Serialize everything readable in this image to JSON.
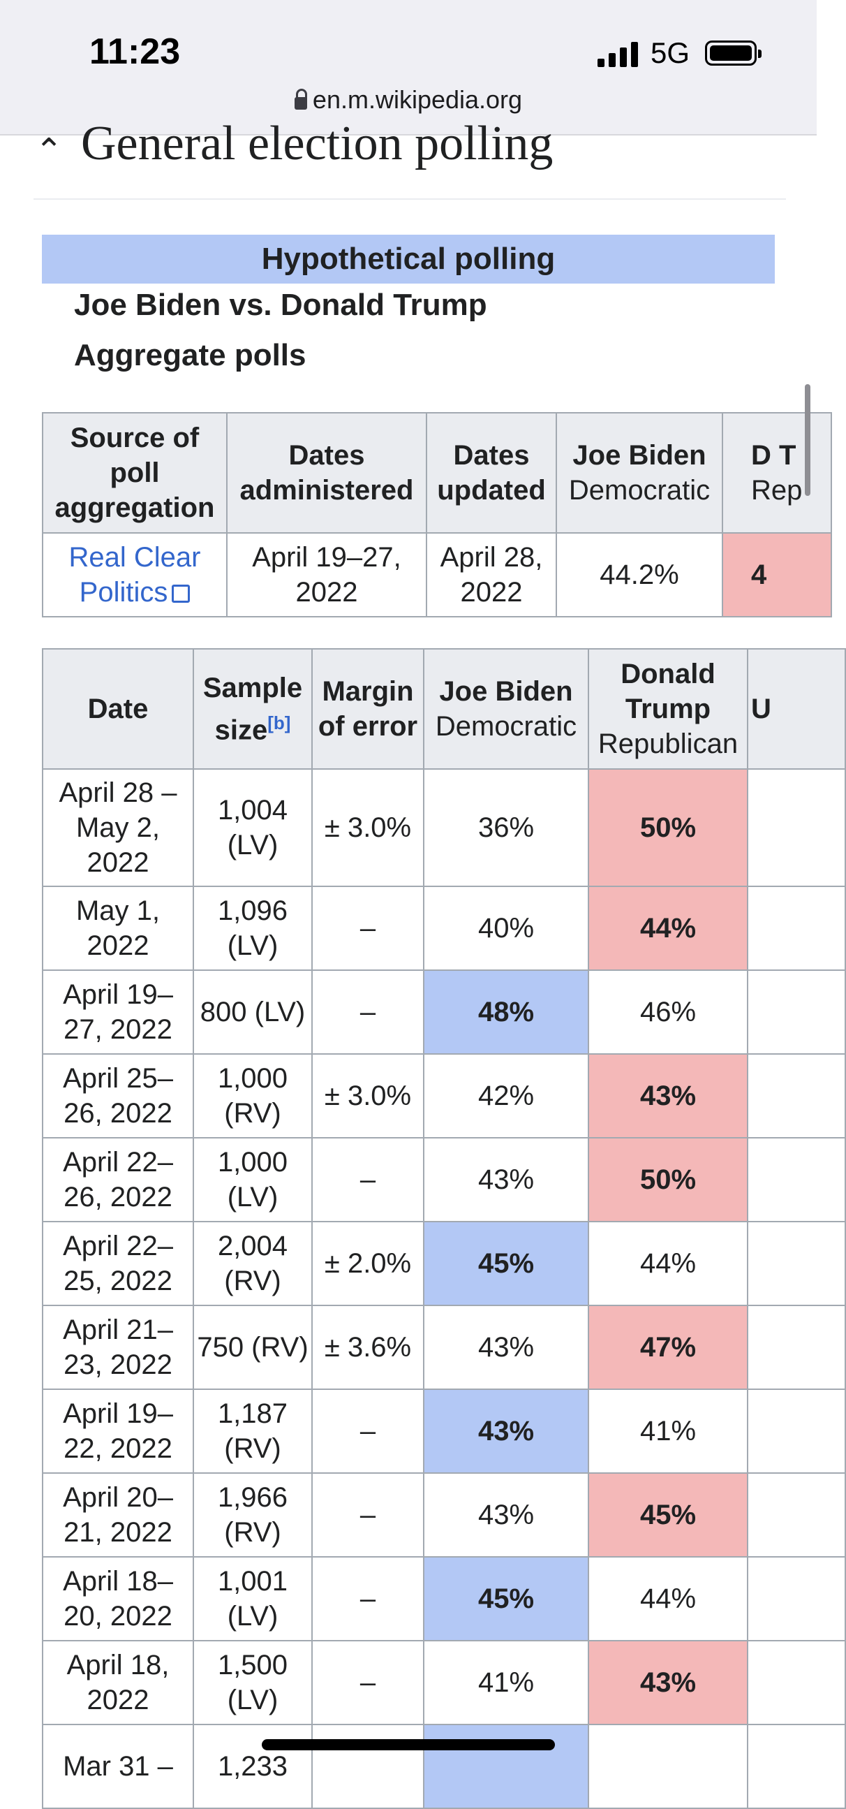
{
  "status": {
    "time": "11:23",
    "network": "5G"
  },
  "browser": {
    "url": "en.m.wikipedia.org"
  },
  "section": {
    "title": "General election polling"
  },
  "hypothetical": {
    "band": "Hypothetical polling",
    "matchup": "Joe Biden vs. Donald Trump",
    "aggregate_label": "Aggregate polls"
  },
  "aggregate": {
    "headers": {
      "source": "Source of poll aggregation",
      "administered": "Dates administered",
      "updated": "Dates updated",
      "biden_name": "Joe Biden",
      "biden_party": "Democratic",
      "trump_name": "D T",
      "trump_party": "Rep"
    },
    "row": {
      "source": "Real Clear Politics",
      "administered": "April 19–27, 2022",
      "updated": "April 28, 2022",
      "biden": "44.2%",
      "trump": "4"
    }
  },
  "polls": {
    "headers": {
      "date": "Date",
      "sample": "Sample size",
      "sample_note": "[b]",
      "margin": "Margin of error",
      "biden_name": "Joe Biden",
      "biden_party": "Democratic",
      "trump_name": "Donald Trump",
      "trump_party": "Republican",
      "other": "U"
    },
    "rows": [
      {
        "date": "April 28 – May 2, 2022",
        "sample": "1,004 (LV)",
        "margin": "± 3.0%",
        "biden": "36%",
        "trump": "50%",
        "leader": "trump"
      },
      {
        "date": "May 1, 2022",
        "sample": "1,096 (LV)",
        "margin": "–",
        "biden": "40%",
        "trump": "44%",
        "leader": "trump"
      },
      {
        "date": "April 19– 27, 2022",
        "sample": "800 (LV)",
        "margin": "–",
        "biden": "48%",
        "trump": "46%",
        "leader": "biden"
      },
      {
        "date": "April 25– 26, 2022",
        "sample": "1,000 (RV)",
        "margin": "± 3.0%",
        "biden": "42%",
        "trump": "43%",
        "leader": "trump"
      },
      {
        "date": "April 22– 26, 2022",
        "sample": "1,000 (LV)",
        "margin": "–",
        "biden": "43%",
        "trump": "50%",
        "leader": "trump"
      },
      {
        "date": "April 22– 25, 2022",
        "sample": "2,004 (RV)",
        "margin": "± 2.0%",
        "biden": "45%",
        "trump": "44%",
        "leader": "biden"
      },
      {
        "date": "April 21– 23, 2022",
        "sample": "750 (RV)",
        "margin": "± 3.6%",
        "biden": "43%",
        "trump": "47%",
        "leader": "trump"
      },
      {
        "date": "April 19– 22, 2022",
        "sample": "1,187 (RV)",
        "margin": "–",
        "biden": "43%",
        "trump": "41%",
        "leader": "biden"
      },
      {
        "date": "April 20– 21, 2022",
        "sample": "1,966 (RV)",
        "margin": "–",
        "biden": "43%",
        "trump": "45%",
        "leader": "trump"
      },
      {
        "date": "April 18– 20, 2022",
        "sample": "1,001 (LV)",
        "margin": "–",
        "biden": "45%",
        "trump": "44%",
        "leader": "biden"
      },
      {
        "date": "April 18, 2022",
        "sample": "1,500 (LV)",
        "margin": "–",
        "biden": "41%",
        "trump": "43%",
        "leader": "trump"
      },
      {
        "date": "Mar 31 –",
        "sample": "1,233",
        "margin": "",
        "biden": "",
        "trump": "",
        "leader": "biden"
      }
    ]
  }
}
